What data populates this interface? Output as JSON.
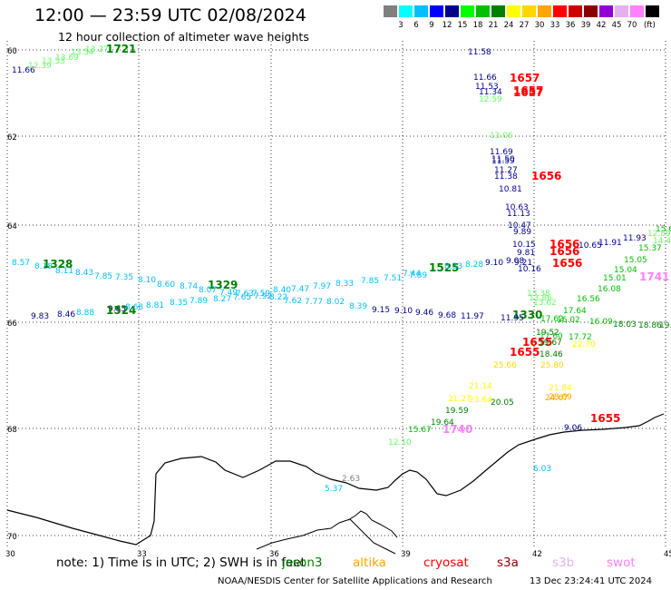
{
  "header": {
    "title": "12:00 — 23:59 UTC 02/08/2024",
    "subtitle": "12 hour collection of altimeter wave heights"
  },
  "colorbar": {
    "unit": "(ft)",
    "bins": [
      {
        "label": "",
        "color": "#7f7f7f"
      },
      {
        "label": "3",
        "color": "#00ffff"
      },
      {
        "label": "6",
        "color": "#00bfff"
      },
      {
        "label": "9",
        "color": "#0000ff"
      },
      {
        "label": "12",
        "color": "#00008b"
      },
      {
        "label": "15",
        "color": "#00ff00"
      },
      {
        "label": "18",
        "color": "#00c000"
      },
      {
        "label": "21",
        "color": "#008000"
      },
      {
        "label": "24",
        "color": "#ffff00"
      },
      {
        "label": "27",
        "color": "#ffd700"
      },
      {
        "label": "30",
        "color": "#ffa500"
      },
      {
        "label": "33",
        "color": "#ff0000"
      },
      {
        "label": "36",
        "color": "#cc0000"
      },
      {
        "label": "39",
        "color": "#8b0000"
      },
      {
        "label": "42",
        "color": "#9400d3"
      },
      {
        "label": "45",
        "color": "#e6b0f0"
      },
      {
        "label": "70",
        "color": "#ff80ff"
      },
      {
        "label": "",
        "color": "#000000"
      }
    ]
  },
  "map": {
    "lat_ticks": [
      "60",
      "62",
      "64",
      "66",
      "68",
      "70"
    ],
    "lon_ticks": [
      "30",
      "33",
      "36",
      "39",
      "42",
      "45"
    ],
    "annotations": [
      {
        "text": "11.66",
        "color": "#00008b",
        "size": 9
      },
      {
        "text": "12.39",
        "color": "#66ff66",
        "size": 9
      },
      {
        "text": "13.53",
        "color": "#66ff66",
        "size": 9
      },
      {
        "text": "13.69",
        "color": "#66ff66",
        "size": 9
      },
      {
        "text": "13.54",
        "color": "#66ff66",
        "size": 9
      },
      {
        "text": "13.27",
        "color": "#66ff66",
        "size": 9
      },
      {
        "text": "1721",
        "color": "#008000",
        "size": 12
      },
      {
        "text": "11.58",
        "color": "#00008b",
        "size": 9
      },
      {
        "text": "1657",
        "color": "#ff0000",
        "size": 12
      },
      {
        "text": "11.66",
        "color": "#00008b",
        "size": 9
      },
      {
        "text": "11.53",
        "color": "#00008b",
        "size": 9
      },
      {
        "text": "11.34",
        "color": "#00008b",
        "size": 9
      },
      {
        "text": "1657",
        "color": "#ff0000",
        "size": 12
      },
      {
        "text": "1657",
        "color": "#ff0000",
        "size": 12
      },
      {
        "text": "12.59",
        "color": "#66ff66",
        "size": 9
      },
      {
        "text": "13.06",
        "color": "#66ff66",
        "size": 9
      },
      {
        "text": "11.69",
        "color": "#00008b",
        "size": 9
      },
      {
        "text": "11.50",
        "color": "#00008b",
        "size": 9
      },
      {
        "text": "11.59",
        "color": "#00008b",
        "size": 9
      },
      {
        "text": "11.27",
        "color": "#00008b",
        "size": 9
      },
      {
        "text": "11.38",
        "color": "#00008b",
        "size": 9
      },
      {
        "text": "1656",
        "color": "#ff0000",
        "size": 12
      },
      {
        "text": "10.81",
        "color": "#00008b",
        "size": 9
      },
      {
        "text": "10.63",
        "color": "#00008b",
        "size": 9
      },
      {
        "text": "11.13",
        "color": "#00008b",
        "size": 9
      },
      {
        "text": "10.47",
        "color": "#00008b",
        "size": 9
      },
      {
        "text": "9.89",
        "color": "#00008b",
        "size": 9
      },
      {
        "text": "10.15",
        "color": "#00008b",
        "size": 9
      },
      {
        "text": "1656",
        "color": "#ff0000",
        "size": 12
      },
      {
        "text": "9.81",
        "color": "#00008b",
        "size": 9
      },
      {
        "text": "1656",
        "color": "#ff0000",
        "size": 12
      },
      {
        "text": "10.65",
        "color": "#00008b",
        "size": 9
      },
      {
        "text": "11.91",
        "color": "#00008b",
        "size": 9
      },
      {
        "text": "11.93",
        "color": "#00008b",
        "size": 9
      },
      {
        "text": "15.67",
        "color": "#00c000",
        "size": 9
      },
      {
        "text": "12.89",
        "color": "#66ff66",
        "size": 9
      },
      {
        "text": "14.47",
        "color": "#66ff66",
        "size": 9
      },
      {
        "text": "9.08",
        "color": "#00008b",
        "size": 9
      },
      {
        "text": "9.21",
        "color": "#00008b",
        "size": 9
      },
      {
        "text": "10.16",
        "color": "#00008b",
        "size": 9
      },
      {
        "text": "1656",
        "color": "#ff0000",
        "size": 12
      },
      {
        "text": "15.37",
        "color": "#00c000",
        "size": 9
      },
      {
        "text": "15.05",
        "color": "#00c000",
        "size": 9
      },
      {
        "text": "15.04",
        "color": "#00c000",
        "size": 9
      },
      {
        "text": "15.01",
        "color": "#00c000",
        "size": 9
      },
      {
        "text": "1741",
        "color": "#ff80ff",
        "size": 12
      },
      {
        "text": "8.57",
        "color": "#00bfff",
        "size": 9
      },
      {
        "text": "8.18",
        "color": "#00bfff",
        "size": 9
      },
      {
        "text": "1328",
        "color": "#008000",
        "size": 12
      },
      {
        "text": "8.11",
        "color": "#00bfff",
        "size": 9
      },
      {
        "text": "8.43",
        "color": "#00bfff",
        "size": 9
      },
      {
        "text": "7.85",
        "color": "#00bfff",
        "size": 9
      },
      {
        "text": "7.35",
        "color": "#00bfff",
        "size": 9
      },
      {
        "text": "8.10",
        "color": "#00bfff",
        "size": 9
      },
      {
        "text": "8.60",
        "color": "#00bfff",
        "size": 9
      },
      {
        "text": "8.74",
        "color": "#00bfff",
        "size": 9
      },
      {
        "text": "1329",
        "color": "#008000",
        "size": 12
      },
      {
        "text": "8.07",
        "color": "#00bfff",
        "size": 9
      },
      {
        "text": "7.49",
        "color": "#00bfff",
        "size": 9
      },
      {
        "text": "7.63",
        "color": "#00bfff",
        "size": 9
      },
      {
        "text": "7.59",
        "color": "#00bfff",
        "size": 9
      },
      {
        "text": "8.40",
        "color": "#00bfff",
        "size": 9
      },
      {
        "text": "7.47",
        "color": "#00bfff",
        "size": 9
      },
      {
        "text": "7.97",
        "color": "#00bfff",
        "size": 9
      },
      {
        "text": "8.33",
        "color": "#00bfff",
        "size": 9
      },
      {
        "text": "7.85",
        "color": "#00bfff",
        "size": 9
      },
      {
        "text": "7.51",
        "color": "#00bfff",
        "size": 9
      },
      {
        "text": "7.44",
        "color": "#00bfff",
        "size": 9
      },
      {
        "text": "7.89",
        "color": "#00bfff",
        "size": 9
      },
      {
        "text": "1525",
        "color": "#008000",
        "size": 12
      },
      {
        "text": "8.33",
        "color": "#00bfff",
        "size": 9
      },
      {
        "text": "8.28",
        "color": "#00bfff",
        "size": 9
      },
      {
        "text": "9.10",
        "color": "#00008b",
        "size": 9
      },
      {
        "text": "13.38",
        "color": "#66ff66",
        "size": 9
      },
      {
        "text": "13.86",
        "color": "#66ff66",
        "size": 9
      },
      {
        "text": "16.08",
        "color": "#00c000",
        "size": 9
      },
      {
        "text": "16.56",
        "color": "#00c000",
        "size": 9
      },
      {
        "text": "9.83",
        "color": "#00008b",
        "size": 9
      },
      {
        "text": "8.46",
        "color": "#00008b",
        "size": 9
      },
      {
        "text": "8.88",
        "color": "#00bfff",
        "size": 9
      },
      {
        "text": "9.85",
        "color": "#00008b",
        "size": 9
      },
      {
        "text": "1524",
        "color": "#008000",
        "size": 12
      },
      {
        "text": "8.68",
        "color": "#00bfff",
        "size": 9
      },
      {
        "text": "8.81",
        "color": "#00bfff",
        "size": 9
      },
      {
        "text": "8.35",
        "color": "#00bfff",
        "size": 9
      },
      {
        "text": "7.89",
        "color": "#00bfff",
        "size": 9
      },
      {
        "text": "8.27",
        "color": "#00bfff",
        "size": 9
      },
      {
        "text": "7.65",
        "color": "#00bfff",
        "size": 9
      },
      {
        "text": "7.92",
        "color": "#00bfff",
        "size": 9
      },
      {
        "text": "8.22",
        "color": "#00bfff",
        "size": 9
      },
      {
        "text": "7.62",
        "color": "#00bfff",
        "size": 9
      },
      {
        "text": "7.77",
        "color": "#00bfff",
        "size": 9
      },
      {
        "text": "8.02",
        "color": "#00bfff",
        "size": 9
      },
      {
        "text": "8.39",
        "color": "#00bfff",
        "size": 9
      },
      {
        "text": "9.15",
        "color": "#00008b",
        "size": 9
      },
      {
        "text": "9.10",
        "color": "#00008b",
        "size": 9
      },
      {
        "text": "9.46",
        "color": "#00008b",
        "size": 9
      },
      {
        "text": "9.68",
        "color": "#00008b",
        "size": 9
      },
      {
        "text": "11.97",
        "color": "#00008b",
        "size": 9
      },
      {
        "text": "1330",
        "color": "#008000",
        "size": 12
      },
      {
        "text": "11.95",
        "color": "#00008b",
        "size": 9
      },
      {
        "text": "13.62",
        "color": "#66ff66",
        "size": 9
      },
      {
        "text": "17.64",
        "color": "#00c000",
        "size": 9
      },
      {
        "text": "17.62",
        "color": "#00c000",
        "size": 9
      },
      {
        "text": "16.02",
        "color": "#00c000",
        "size": 9
      },
      {
        "text": "16.09",
        "color": "#00c000",
        "size": 9
      },
      {
        "text": "18.03",
        "color": "#008000",
        "size": 9
      },
      {
        "text": "18.86",
        "color": "#008000",
        "size": 9
      },
      {
        "text": "19.53",
        "color": "#008000",
        "size": 9
      },
      {
        "text": "19.52",
        "color": "#008000",
        "size": 9
      },
      {
        "text": "17.60",
        "color": "#00c000",
        "size": 9
      },
      {
        "text": "17.72",
        "color": "#00c000",
        "size": 9
      },
      {
        "text": "1655",
        "color": "#ff0000",
        "size": 12
      },
      {
        "text": "19.67",
        "color": "#008000",
        "size": 9
      },
      {
        "text": "22.70",
        "color": "#ffff00",
        "size": 9
      },
      {
        "text": "1655",
        "color": "#ff0000",
        "size": 12
      },
      {
        "text": "18.46",
        "color": "#008000",
        "size": 9
      },
      {
        "text": "25.80",
        "color": "#ffd700",
        "size": 9
      },
      {
        "text": "25.66",
        "color": "#ffd700",
        "size": 9
      },
      {
        "text": "20.05",
        "color": "#008000",
        "size": 9
      },
      {
        "text": "21.14",
        "color": "#ffff00",
        "size": 9
      },
      {
        "text": "21.84",
        "color": "#ffff00",
        "size": 9
      },
      {
        "text": "28.69",
        "color": "#ffa500",
        "size": 9
      },
      {
        "text": "24.67",
        "color": "#ffa500",
        "size": 9
      },
      {
        "text": "21.27",
        "color": "#ffff00",
        "size": 9
      },
      {
        "text": "23.64",
        "color": "#ffff00",
        "size": 9
      },
      {
        "text": "19.59",
        "color": "#008000",
        "size": 9
      },
      {
        "text": "1655",
        "color": "#ff0000",
        "size": 12
      },
      {
        "text": "9.06",
        "color": "#00008b",
        "size": 9
      },
      {
        "text": "19.64",
        "color": "#008000",
        "size": 9
      },
      {
        "text": "15.67",
        "color": "#00c000",
        "size": 9
      },
      {
        "text": "1740",
        "color": "#ff80ff",
        "size": 12
      },
      {
        "text": "12.10",
        "color": "#66ff66",
        "size": 9
      },
      {
        "text": "6.03",
        "color": "#00bfff",
        "size": 9
      },
      {
        "text": "2.63",
        "color": "#7f7f7f",
        "size": 9
      },
      {
        "text": "5.37",
        "color": "#00bfff",
        "size": 9
      }
    ]
  },
  "notes": {
    "text": "note:  1) Time is in UTC;  2) SWH is in feet",
    "satellites": [
      {
        "name": "jason3",
        "color": "#008000"
      },
      {
        "name": "altika",
        "color": "#ffa500"
      },
      {
        "name": "cryosat",
        "color": "#ff0000"
      },
      {
        "name": "s3a",
        "color": "#8b0000"
      },
      {
        "name": "s3b",
        "color": "#e6b0f0"
      },
      {
        "name": "swot",
        "color": "#ff80ff"
      }
    ]
  },
  "footer": {
    "credit": "NOAA/NESDIS Center for Satellite Applications and Research",
    "generated": "13 Dec 23:24:41 UTC 2024"
  }
}
